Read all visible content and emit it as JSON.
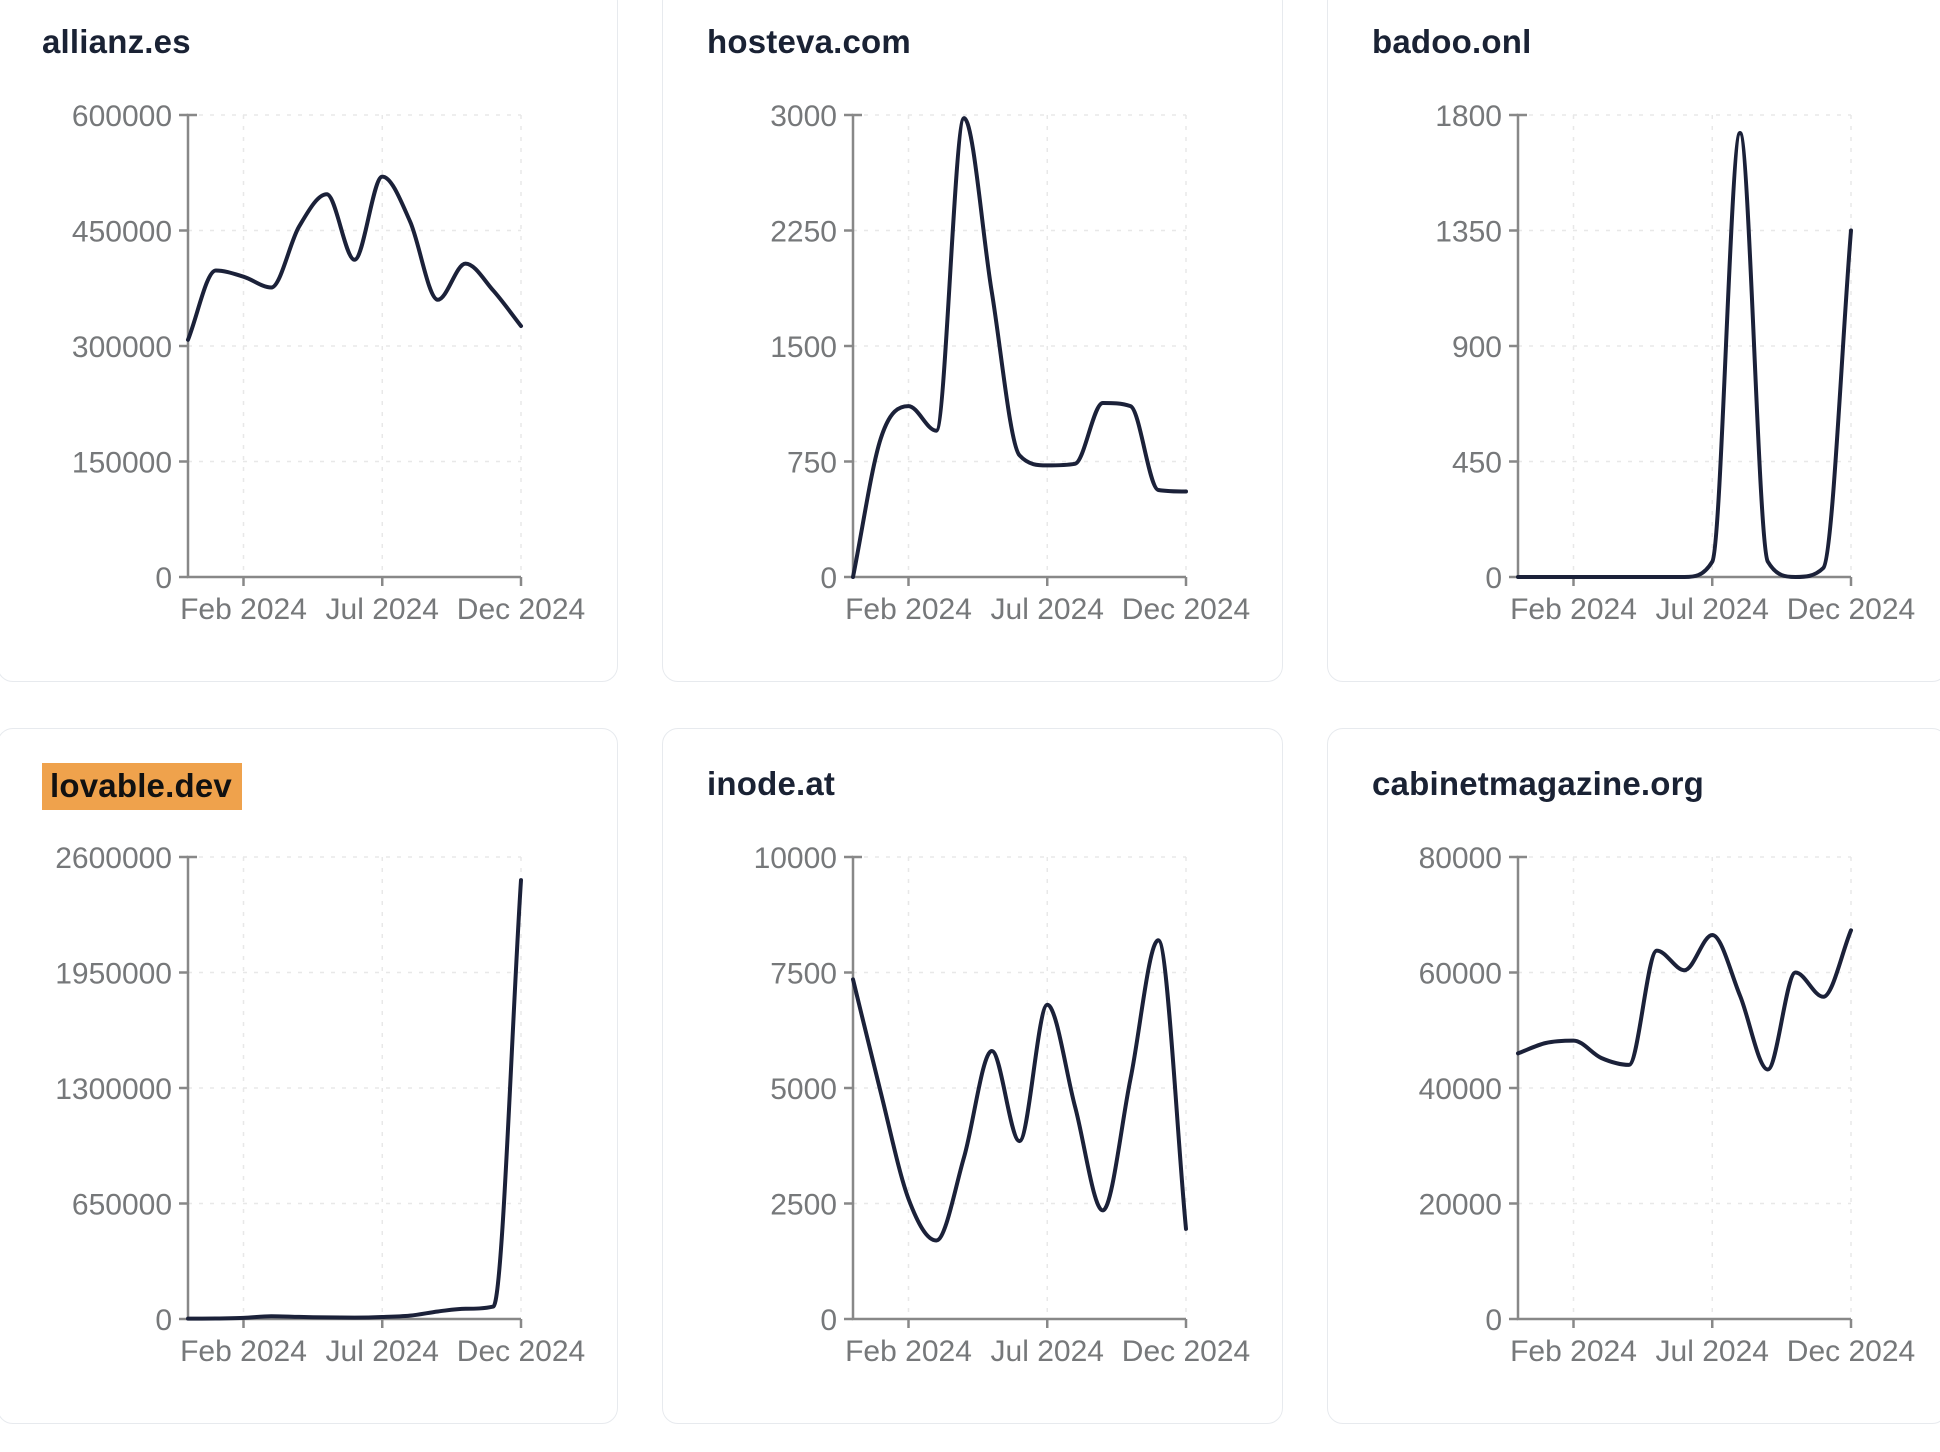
{
  "page": {
    "background": "#ffffff"
  },
  "style": {
    "line_color": "#1b2139",
    "title_color": "#1a2234",
    "axis_color": "#888888",
    "tick_label_color": "#76787a",
    "gridline_color": "#e8e8e8",
    "card_border_color": "#e7eaee",
    "card_background": "#ffffff",
    "highlight_color": "#efa24c",
    "highlight_text_color": "#111111"
  },
  "x_axis": {
    "months": [
      "Dec 2023",
      "Jan 2024",
      "Feb 2024",
      "Mar 2024",
      "Apr 2024",
      "May 2024",
      "Jun 2024",
      "Jul 2024",
      "Aug 2024",
      "Sep 2024",
      "Oct 2024",
      "Nov 2024",
      "Dec 2024"
    ],
    "tick_indices": [
      2,
      7,
      12
    ],
    "tick_labels": [
      "Feb 2024",
      "Jul 2024",
      "Dec 2024"
    ]
  },
  "chart_data": [
    {
      "type": "line",
      "title": "allianz.es",
      "highlighted": false,
      "ylim": [
        0,
        600000
      ],
      "y_ticks": [
        "600000",
        "450000",
        "300000",
        "150000",
        "0"
      ],
      "x_tick_labels": [
        "Feb 2024",
        "Jul 2024",
        "Dec 2024"
      ],
      "x": [
        "Dec 2023",
        "Jan 2024",
        "Feb 2024",
        "Mar 2024",
        "Apr 2024",
        "May 2024",
        "Jun 2024",
        "Jul 2024",
        "Aug 2024",
        "Sep 2024",
        "Oct 2024",
        "Nov 2024",
        "Dec 2024"
      ],
      "values": [
        308000,
        398000,
        390000,
        376000,
        455000,
        497000,
        412000,
        520000,
        462000,
        360000,
        407000,
        372000,
        326000
      ]
    },
    {
      "type": "line",
      "title": "hosteva.com",
      "highlighted": false,
      "ylim": [
        0,
        3000
      ],
      "y_ticks": [
        "3000",
        "2250",
        "1500",
        "750",
        "0"
      ],
      "x_tick_labels": [
        "Feb 2024",
        "Jul 2024",
        "Dec 2024"
      ],
      "x": [
        "Dec 2023",
        "Jan 2024",
        "Feb 2024",
        "Mar 2024",
        "Apr 2024",
        "May 2024",
        "Jun 2024",
        "Jul 2024",
        "Aug 2024",
        "Sep 2024",
        "Oct 2024",
        "Nov 2024",
        "Dec 2024"
      ],
      "values": [
        0,
        900,
        1110,
        950,
        2980,
        1850,
        790,
        725,
        735,
        1130,
        1110,
        565,
        555
      ]
    },
    {
      "type": "line",
      "title": "badoo.onl",
      "highlighted": false,
      "ylim": [
        0,
        1800
      ],
      "y_ticks": [
        "1800",
        "1350",
        "900",
        "450",
        "0"
      ],
      "x_tick_labels": [
        "Feb 2024",
        "Jul 2024",
        "Dec 2024"
      ],
      "x": [
        "Dec 2023",
        "Jan 2024",
        "Feb 2024",
        "Mar 2024",
        "Apr 2024",
        "May 2024",
        "Jun 2024",
        "Jul 2024",
        "Aug 2024",
        "Sep 2024",
        "Oct 2024",
        "Nov 2024",
        "Dec 2024"
      ],
      "values": [
        0,
        0,
        0,
        0,
        0,
        0,
        0,
        60,
        1730,
        60,
        0,
        35,
        1350
      ]
    },
    {
      "type": "line",
      "title": "lovable.dev",
      "highlighted": true,
      "ylim": [
        0,
        2600000
      ],
      "y_ticks": [
        "2600000",
        "1950000",
        "1300000",
        "650000",
        "0"
      ],
      "x_tick_labels": [
        "Feb 2024",
        "Jul 2024",
        "Dec 2024"
      ],
      "x": [
        "Dec 2023",
        "Jan 2024",
        "Feb 2024",
        "Mar 2024",
        "Apr 2024",
        "May 2024",
        "Jun 2024",
        "Jul 2024",
        "Aug 2024",
        "Sep 2024",
        "Oct 2024",
        "Nov 2024",
        "Dec 2024"
      ],
      "values": [
        2000,
        3000,
        6000,
        16000,
        12000,
        9000,
        8000,
        11000,
        19000,
        42000,
        58000,
        70000,
        2470000
      ]
    },
    {
      "type": "line",
      "title": "inode.at",
      "highlighted": false,
      "ylim": [
        0,
        10000
      ],
      "y_ticks": [
        "10000",
        "7500",
        "5000",
        "2500",
        "0"
      ],
      "x_tick_labels": [
        "Feb 2024",
        "Jul 2024",
        "Dec 2024"
      ],
      "x": [
        "Dec 2023",
        "Jan 2024",
        "Feb 2024",
        "Mar 2024",
        "Apr 2024",
        "May 2024",
        "Jun 2024",
        "Jul 2024",
        "Aug 2024",
        "Sep 2024",
        "Oct 2024",
        "Nov 2024",
        "Dec 2024"
      ],
      "values": [
        7350,
        4900,
        2600,
        1700,
        3500,
        5800,
        3850,
        6800,
        4600,
        2350,
        5200,
        8200,
        1950
      ]
    },
    {
      "type": "line",
      "title": "cabinetmagazine.org",
      "highlighted": false,
      "ylim": [
        0,
        80000
      ],
      "y_ticks": [
        "80000",
        "60000",
        "40000",
        "20000",
        "0"
      ],
      "x_tick_labels": [
        "Feb 2024",
        "Jul 2024",
        "Dec 2024"
      ],
      "x": [
        "Dec 2023",
        "Jan 2024",
        "Feb 2024",
        "Mar 2024",
        "Apr 2024",
        "May 2024",
        "Jun 2024",
        "Jul 2024",
        "Aug 2024",
        "Sep 2024",
        "Oct 2024",
        "Nov 2024",
        "Dec 2024"
      ],
      "values": [
        46000,
        47800,
        48200,
        45200,
        44000,
        63800,
        60400,
        66500,
        56000,
        43200,
        60000,
        55800,
        67300
      ]
    }
  ]
}
